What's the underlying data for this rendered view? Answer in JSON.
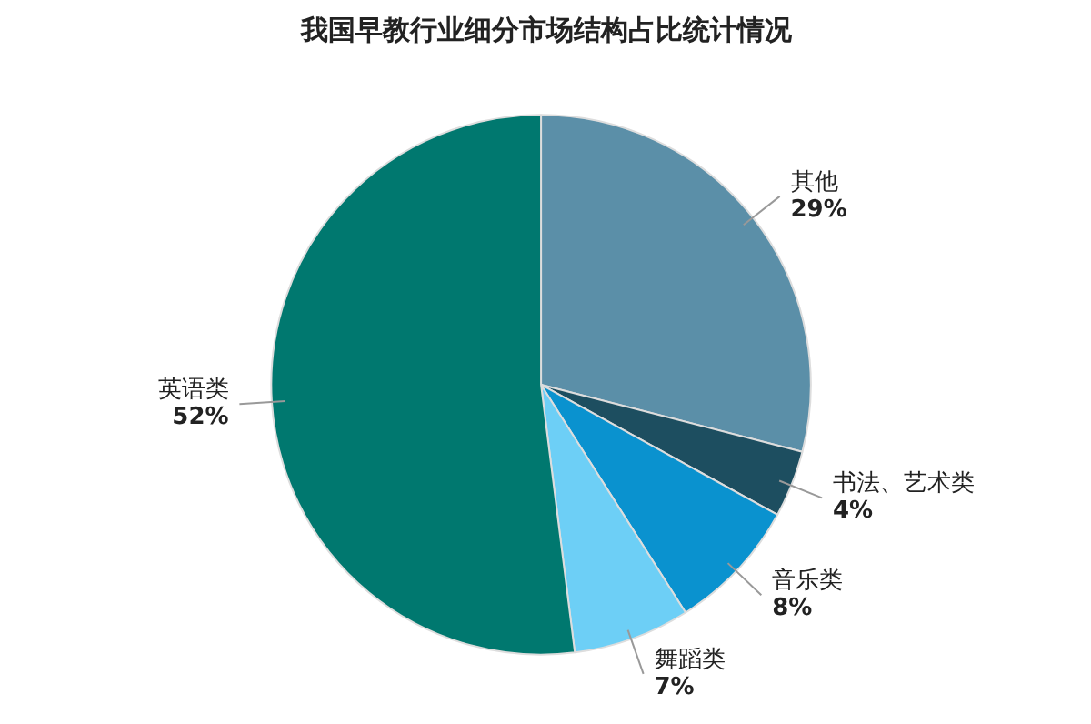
{
  "chart_data": {
    "type": "pie",
    "title": "我国早教行业细分市场结构占比统计情况",
    "categories": [
      "其他",
      "书法、艺术类",
      "音乐类",
      "舞蹈类",
      "英语类"
    ],
    "values": [
      29,
      4,
      8,
      7,
      52
    ],
    "colors": [
      "#5b8fa8",
      "#1d4e60",
      "#0a92cf",
      "#6dcff6",
      "#00786f"
    ],
    "value_labels": [
      "29%",
      "4%",
      "8%",
      "7%",
      "52%"
    ]
  }
}
